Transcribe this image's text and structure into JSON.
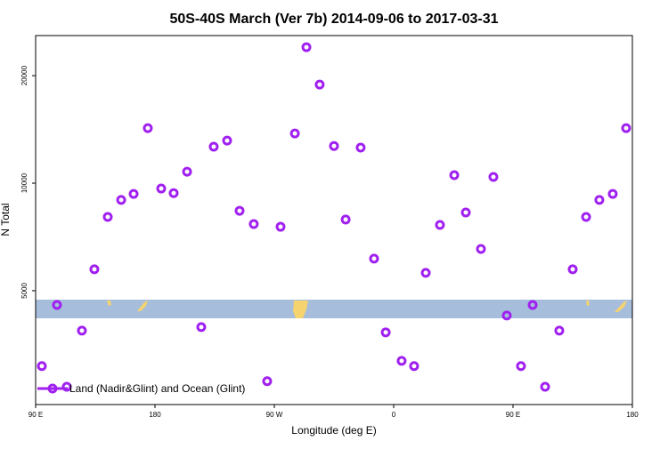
{
  "chart_data": {
    "type": "scatter",
    "title": "50S-40S March (Ver 7b)   2014-09-06 to 2017-03-31",
    "x_label": "Longitude (deg E)",
    "y_label": "N Total",
    "series": [
      {
        "name": "Land (Nadir&Glint) and Ocean (Glint)",
        "color": "#a020f0",
        "x": [
          94.7,
          106.1,
          113.5,
          124.9,
          134.3,
          144.4,
          154.5,
          163.9,
          174.6,
          184.7,
          194.1,
          204.2,
          214.9,
          224.3,
          234.4,
          243.8,
          254.5,
          264.6,
          274.7,
          285.5,
          294.2,
          304.2,
          315.0,
          323.8,
          335.1,
          345.2,
          354.0,
          366.0,
          375.4,
          384.2,
          394.9,
          405.7,
          414.4,
          425.8,
          435.2,
          445.3,
          456.0,
          464.8,
          474.2,
          484.9,
          495.0,
          505.1,
          515.1,
          525.2,
          535.3
        ],
        "values": [
          3075,
          4560,
          2692,
          3864,
          5740,
          8045,
          8975,
          9330,
          14260,
          9660,
          9380,
          10770,
          3955,
          12650,
          13160,
          8370,
          7685,
          2790,
          7550,
          13780,
          24030,
          18880,
          12710,
          7910,
          12580,
          6150,
          3822,
          3180,
          3075,
          5610,
          7640,
          10530,
          8280,
          6545,
          10410,
          4260,
          3075,
          4560,
          2692,
          3864,
          5740,
          8045,
          8975,
          9330,
          14260
        ]
      }
    ],
    "xlim": [
      90,
      540
    ],
    "xticks": [
      {
        "value": 90,
        "label": "90 E"
      },
      180,
      {
        "value": 270,
        "label": "90 W"
      },
      {
        "value": 360,
        "label": "0"
      },
      {
        "value": 450,
        "label": "90 E"
      },
      {
        "value": 540,
        "label": "180"
      }
    ],
    "ylim": [
      2400,
      25900
    ],
    "ylog": true,
    "yticks": [
      5000,
      10000,
      20000
    ],
    "legend": "bottom-left"
  }
}
